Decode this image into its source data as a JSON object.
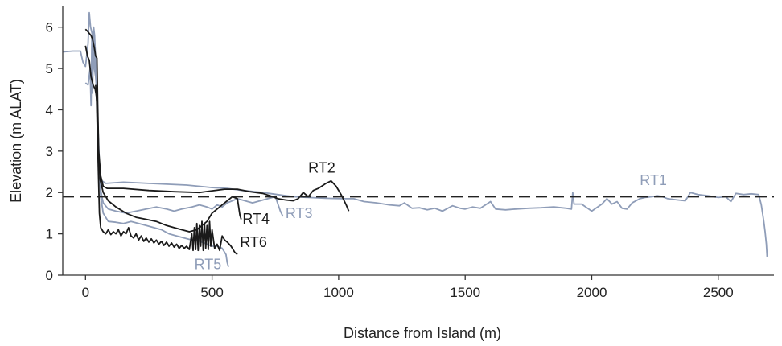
{
  "chart_data": {
    "type": "line",
    "xlabel": "Distance from Island (m)",
    "ylabel": "Elevation (m ALAT)",
    "xlim": [
      -90,
      2720
    ],
    "ylim": [
      0,
      6.5
    ],
    "xticks": [
      0,
      500,
      1000,
      1500,
      2000,
      2500
    ],
    "yticks": [
      0,
      1,
      2,
      3,
      4,
      5,
      6
    ],
    "grid": false,
    "reference_line": {
      "y": 1.9,
      "style": "dashed",
      "color": "#222222"
    },
    "colors": {
      "gray": "#8f9db8",
      "black": "#1a1a1a",
      "axis": "#333333"
    },
    "series": [
      {
        "name": "RT1",
        "color": "#8f9db8",
        "label_pos": {
          "x": 2190,
          "y": 2.18
        },
        "points": [
          [
            -90,
            5.4
          ],
          [
            -50,
            5.42
          ],
          [
            -20,
            5.42
          ],
          [
            -10,
            5.15
          ],
          [
            0,
            5.05
          ],
          [
            10,
            5.6
          ],
          [
            15,
            6.35
          ],
          [
            20,
            6.0
          ],
          [
            28,
            5.8
          ],
          [
            35,
            5.2
          ],
          [
            40,
            5.0
          ],
          [
            45,
            4.5
          ],
          [
            50,
            3.5
          ],
          [
            55,
            2.7
          ],
          [
            60,
            2.3
          ],
          [
            80,
            2.22
          ],
          [
            150,
            2.25
          ],
          [
            250,
            2.22
          ],
          [
            400,
            2.18
          ],
          [
            500,
            2.12
          ],
          [
            560,
            2.1
          ],
          [
            620,
            2.05
          ],
          [
            700,
            2.0
          ],
          [
            760,
            1.95
          ],
          [
            820,
            1.9
          ],
          [
            880,
            1.88
          ],
          [
            950,
            1.86
          ],
          [
            1010,
            1.85
          ],
          [
            1060,
            1.85
          ],
          [
            1100,
            1.78
          ],
          [
            1150,
            1.75
          ],
          [
            1200,
            1.7
          ],
          [
            1240,
            1.68
          ],
          [
            1260,
            1.75
          ],
          [
            1290,
            1.62
          ],
          [
            1320,
            1.63
          ],
          [
            1350,
            1.58
          ],
          [
            1380,
            1.62
          ],
          [
            1410,
            1.55
          ],
          [
            1450,
            1.68
          ],
          [
            1480,
            1.62
          ],
          [
            1500,
            1.6
          ],
          [
            1530,
            1.65
          ],
          [
            1560,
            1.62
          ],
          [
            1600,
            1.78
          ],
          [
            1620,
            1.6
          ],
          [
            1660,
            1.58
          ],
          [
            1700,
            1.6
          ],
          [
            1750,
            1.62
          ],
          [
            1800,
            1.63
          ],
          [
            1850,
            1.65
          ],
          [
            1900,
            1.62
          ],
          [
            1920,
            1.6
          ],
          [
            1925,
            2.0
          ],
          [
            1930,
            1.72
          ],
          [
            1960,
            1.72
          ],
          [
            2000,
            1.55
          ],
          [
            2040,
            1.72
          ],
          [
            2060,
            1.85
          ],
          [
            2080,
            1.72
          ],
          [
            2100,
            1.78
          ],
          [
            2120,
            1.62
          ],
          [
            2140,
            1.6
          ],
          [
            2160,
            1.75
          ],
          [
            2190,
            1.85
          ],
          [
            2210,
            1.88
          ],
          [
            2240,
            1.9
          ],
          [
            2260,
            1.92
          ],
          [
            2280,
            1.9
          ],
          [
            2300,
            1.85
          ],
          [
            2340,
            1.82
          ],
          [
            2370,
            1.8
          ],
          [
            2390,
            2.0
          ],
          [
            2420,
            1.95
          ],
          [
            2460,
            1.92
          ],
          [
            2500,
            1.88
          ],
          [
            2530,
            1.9
          ],
          [
            2550,
            1.78
          ],
          [
            2570,
            1.98
          ],
          [
            2600,
            1.95
          ],
          [
            2630,
            1.97
          ],
          [
            2660,
            1.95
          ],
          [
            2670,
            1.7
          ],
          [
            2680,
            1.3
          ],
          [
            2685,
            1.05
          ],
          [
            2690,
            0.75
          ],
          [
            2693,
            0.45
          ]
        ]
      },
      {
        "name": "RT2",
        "color": "#1a1a1a",
        "label_pos": {
          "x": 880,
          "y": 2.48
        },
        "points": [
          [
            0,
            5.95
          ],
          [
            8,
            5.9
          ],
          [
            15,
            5.85
          ],
          [
            22,
            5.8
          ],
          [
            28,
            5.7
          ],
          [
            35,
            5.5
          ],
          [
            40,
            5.3
          ],
          [
            45,
            5.25
          ],
          [
            48,
            4.2
          ],
          [
            52,
            3.0
          ],
          [
            60,
            2.4
          ],
          [
            70,
            2.15
          ],
          [
            85,
            2.1
          ],
          [
            150,
            2.1
          ],
          [
            250,
            2.05
          ],
          [
            350,
            2.02
          ],
          [
            450,
            2.0
          ],
          [
            550,
            2.08
          ],
          [
            600,
            2.08
          ],
          [
            650,
            2.02
          ],
          [
            700,
            1.98
          ],
          [
            730,
            1.92
          ],
          [
            760,
            1.85
          ],
          [
            790,
            1.82
          ],
          [
            820,
            1.8
          ],
          [
            840,
            1.85
          ],
          [
            860,
            2.0
          ],
          [
            880,
            1.9
          ],
          [
            900,
            2.05
          ],
          [
            920,
            2.1
          ],
          [
            950,
            2.22
          ],
          [
            970,
            2.28
          ],
          [
            990,
            2.15
          ],
          [
            1010,
            1.95
          ],
          [
            1030,
            1.7
          ],
          [
            1040,
            1.55
          ]
        ]
      },
      {
        "name": "RT3",
        "color": "#8f9db8",
        "label_pos": {
          "x": 790,
          "y": 1.38
        },
        "points": [
          [
            0,
            4.65
          ],
          [
            10,
            4.6
          ],
          [
            18,
            5.0
          ],
          [
            22,
            4.1
          ],
          [
            25,
            5.7
          ],
          [
            28,
            4.4
          ],
          [
            32,
            6.0
          ],
          [
            36,
            5.8
          ],
          [
            40,
            5.2
          ],
          [
            45,
            4.5
          ],
          [
            50,
            3.4
          ],
          [
            55,
            2.5
          ],
          [
            60,
            2.05
          ],
          [
            70,
            1.75
          ],
          [
            90,
            1.6
          ],
          [
            120,
            1.55
          ],
          [
            160,
            1.5
          ],
          [
            200,
            1.55
          ],
          [
            240,
            1.6
          ],
          [
            280,
            1.65
          ],
          [
            320,
            1.6
          ],
          [
            350,
            1.55
          ],
          [
            380,
            1.6
          ],
          [
            420,
            1.65
          ],
          [
            450,
            1.7
          ],
          [
            480,
            1.65
          ],
          [
            500,
            1.6
          ],
          [
            520,
            1.7
          ],
          [
            540,
            1.65
          ],
          [
            560,
            1.75
          ],
          [
            580,
            1.8
          ],
          [
            600,
            1.85
          ],
          [
            630,
            1.8
          ],
          [
            660,
            1.75
          ],
          [
            690,
            1.8
          ],
          [
            720,
            1.85
          ],
          [
            750,
            1.9
          ],
          [
            770,
            1.55
          ],
          [
            780,
            1.42
          ]
        ]
      },
      {
        "name": "RT4",
        "color": "#1a1a1a",
        "label_pos": {
          "x": 620,
          "y": 1.25
        },
        "points": [
          [
            0,
            5.55
          ],
          [
            8,
            5.3
          ],
          [
            15,
            5.2
          ],
          [
            22,
            4.8
          ],
          [
            30,
            4.6
          ],
          [
            38,
            4.5
          ],
          [
            44,
            4.3
          ],
          [
            48,
            3.6
          ],
          [
            52,
            2.8
          ],
          [
            58,
            2.3
          ],
          [
            70,
            2.0
          ],
          [
            90,
            1.8
          ],
          [
            120,
            1.65
          ],
          [
            160,
            1.5
          ],
          [
            200,
            1.4
          ],
          [
            240,
            1.35
          ],
          [
            280,
            1.3
          ],
          [
            320,
            1.2
          ],
          [
            350,
            1.15
          ],
          [
            380,
            1.1
          ],
          [
            410,
            1.05
          ],
          [
            440,
            1.1
          ],
          [
            460,
            1.2
          ],
          [
            480,
            1.3
          ],
          [
            500,
            1.5
          ],
          [
            520,
            1.6
          ],
          [
            540,
            1.7
          ],
          [
            560,
            1.8
          ],
          [
            580,
            1.9
          ],
          [
            600,
            1.85
          ],
          [
            610,
            1.45
          ],
          [
            615,
            1.35
          ]
        ]
      },
      {
        "name": "RT5",
        "color": "#8f9db8",
        "label_pos": {
          "x": 430,
          "y": 0.15
        },
        "points": [
          [
            30,
            5.5
          ],
          [
            35,
            5.0
          ],
          [
            40,
            4.8
          ],
          [
            45,
            4.4
          ],
          [
            50,
            3.4
          ],
          [
            55,
            2.5
          ],
          [
            60,
            1.9
          ],
          [
            70,
            1.5
          ],
          [
            90,
            1.3
          ],
          [
            120,
            1.28
          ],
          [
            150,
            1.25
          ],
          [
            180,
            1.3
          ],
          [
            210,
            1.25
          ],
          [
            240,
            1.2
          ],
          [
            270,
            1.15
          ],
          [
            300,
            1.1
          ],
          [
            330,
            1.0
          ],
          [
            360,
            0.95
          ],
          [
            390,
            0.9
          ],
          [
            420,
            0.85
          ],
          [
            440,
            0.85
          ],
          [
            460,
            0.8
          ],
          [
            480,
            0.75
          ],
          [
            500,
            0.7
          ],
          [
            520,
            0.7
          ],
          [
            540,
            0.65
          ],
          [
            555,
            0.5
          ],
          [
            560,
            0.3
          ],
          [
            565,
            0.2
          ]
        ]
      },
      {
        "name": "RT6",
        "color": "#1a1a1a",
        "label_pos": {
          "x": 610,
          "y": 0.68
        },
        "points": [
          [
            40,
            4.6
          ],
          [
            44,
            4.2
          ],
          [
            48,
            3.2
          ],
          [
            52,
            2.2
          ],
          [
            55,
            1.5
          ],
          [
            60,
            1.15
          ],
          [
            70,
            1.05
          ],
          [
            80,
            1.0
          ],
          [
            90,
            1.1
          ],
          [
            100,
            0.98
          ],
          [
            110,
            1.05
          ],
          [
            120,
            1.0
          ],
          [
            130,
            1.1
          ],
          [
            140,
            0.95
          ],
          [
            150,
            1.05
          ],
          [
            160,
            1.0
          ],
          [
            170,
            1.15
          ],
          [
            180,
            0.95
          ],
          [
            190,
            0.9
          ],
          [
            200,
            1.0
          ],
          [
            210,
            0.85
          ],
          [
            220,
            0.95
          ],
          [
            230,
            0.82
          ],
          [
            240,
            0.9
          ],
          [
            250,
            0.8
          ],
          [
            260,
            0.88
          ],
          [
            270,
            0.78
          ],
          [
            280,
            0.85
          ],
          [
            290,
            0.75
          ],
          [
            300,
            0.82
          ],
          [
            310,
            0.72
          ],
          [
            320,
            0.8
          ],
          [
            330,
            0.7
          ],
          [
            340,
            0.78
          ],
          [
            350,
            0.68
          ],
          [
            360,
            0.75
          ],
          [
            370,
            0.65
          ],
          [
            380,
            0.72
          ],
          [
            390,
            0.65
          ],
          [
            400,
            0.7
          ],
          [
            410,
            0.62
          ],
          [
            420,
            1.0
          ],
          [
            425,
            0.6
          ],
          [
            430,
            1.15
          ],
          [
            435,
            0.62
          ],
          [
            440,
            1.25
          ],
          [
            445,
            0.6
          ],
          [
            450,
            1.2
          ],
          [
            455,
            0.7
          ],
          [
            460,
            1.3
          ],
          [
            465,
            0.6
          ],
          [
            470,
            1.25
          ],
          [
            475,
            0.65
          ],
          [
            480,
            1.2
          ],
          [
            485,
            0.62
          ],
          [
            490,
            1.3
          ],
          [
            495,
            0.7
          ],
          [
            500,
            1.1
          ],
          [
            510,
            0.65
          ],
          [
            520,
            0.75
          ],
          [
            530,
            0.6
          ],
          [
            540,
            0.95
          ],
          [
            550,
            0.85
          ],
          [
            560,
            0.8
          ],
          [
            575,
            0.7
          ],
          [
            590,
            0.55
          ],
          [
            600,
            0.5
          ]
        ]
      }
    ]
  }
}
